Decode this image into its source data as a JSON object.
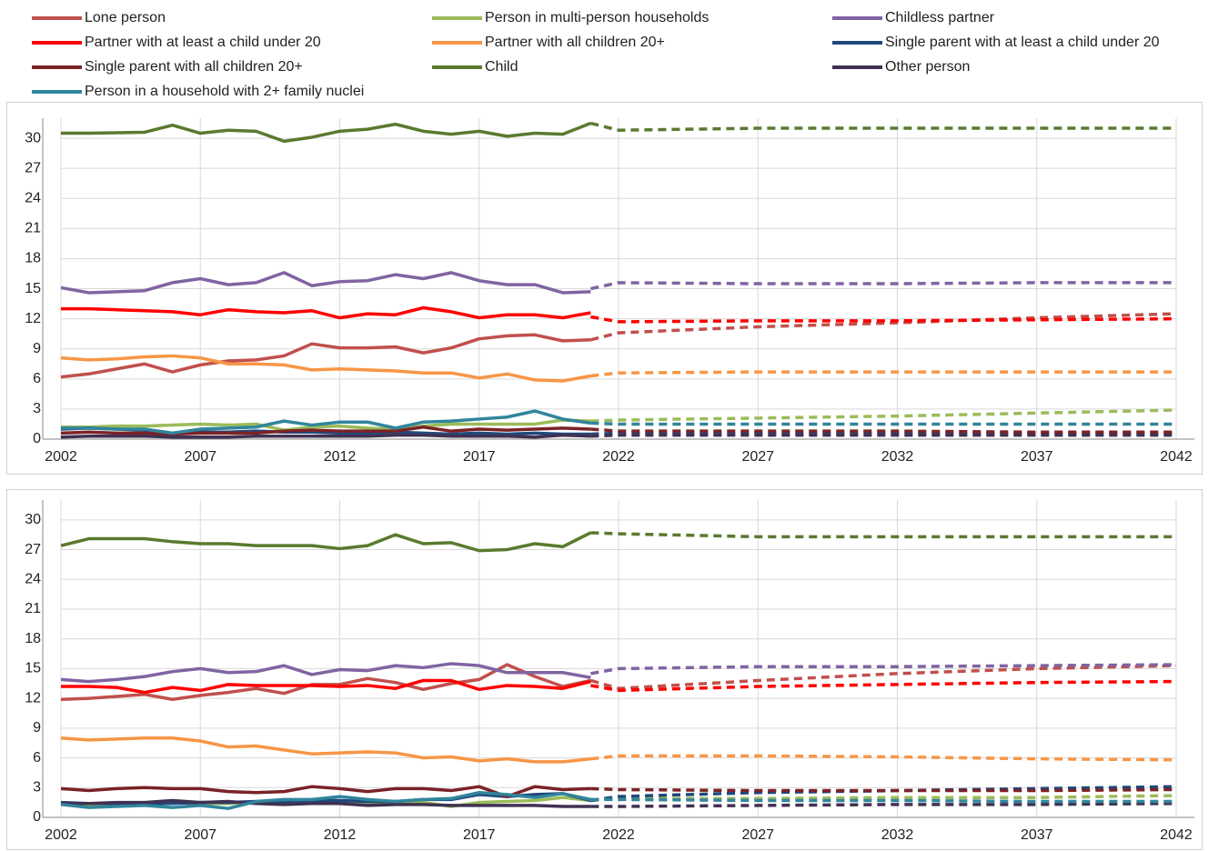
{
  "chart_data": [
    {
      "type": "line",
      "x": [
        2002,
        2003,
        2004,
        2005,
        2006,
        2007,
        2008,
        2009,
        2010,
        2011,
        2012,
        2013,
        2014,
        2015,
        2016,
        2017,
        2018,
        2019,
        2020,
        2021
      ],
      "x_projection": [
        2021,
        2022,
        2027,
        2032,
        2037,
        2042
      ],
      "xlim": [
        2002,
        2042
      ],
      "xticks": [
        2002,
        2007,
        2012,
        2017,
        2022,
        2027,
        2032,
        2037,
        2042
      ],
      "ylim": [
        0,
        32
      ],
      "yticks": [
        0,
        3,
        6,
        9,
        12,
        15,
        18,
        21,
        24,
        27,
        30
      ],
      "grid": true,
      "series": [
        {
          "name": "Lone person",
          "color": "#c0504d",
          "values": [
            6.2,
            6.5,
            7.0,
            7.5,
            6.7,
            7.4,
            7.8,
            7.9,
            8.3,
            9.5,
            9.1,
            9.1,
            9.2,
            8.6,
            9.1,
            10.0,
            10.3,
            10.4,
            9.8,
            9.9
          ],
          "projection": [
            9.9,
            10.6,
            11.2,
            11.6,
            12.1,
            12.5
          ]
        },
        {
          "name": "Person in multi-person households",
          "color": "#9bbb59",
          "values": [
            1.2,
            1.2,
            1.3,
            1.3,
            1.4,
            1.5,
            1.4,
            1.5,
            0.9,
            1.2,
            1.3,
            1.1,
            1.0,
            1.3,
            1.5,
            1.5,
            1.5,
            1.5,
            1.9,
            1.8
          ],
          "projection": [
            1.8,
            1.9,
            2.1,
            2.3,
            2.6,
            2.9
          ]
        },
        {
          "name": "Childless partner",
          "color": "#8064a2",
          "values": [
            15.1,
            14.6,
            14.7,
            14.8,
            15.6,
            16.0,
            15.4,
            15.6,
            16.6,
            15.3,
            15.7,
            15.8,
            16.4,
            16.0,
            16.6,
            15.8,
            15.4,
            15.4,
            14.6,
            14.7
          ],
          "projection": [
            15.0,
            15.6,
            15.5,
            15.5,
            15.6,
            15.6
          ]
        },
        {
          "name": "Partner with at least a child under 20",
          "color": "#ff0000",
          "values": [
            13.0,
            13.0,
            12.9,
            12.8,
            12.7,
            12.4,
            12.9,
            12.7,
            12.6,
            12.8,
            12.1,
            12.5,
            12.4,
            13.1,
            12.7,
            12.1,
            12.4,
            12.4,
            12.1,
            12.6
          ],
          "projection": [
            12.2,
            11.7,
            11.8,
            11.8,
            11.9,
            12.0
          ]
        },
        {
          "name": "Partner with all children 20+",
          "color": "#f79646",
          "values": [
            8.1,
            7.9,
            8.0,
            8.2,
            8.3,
            8.1,
            7.5,
            7.5,
            7.4,
            6.9,
            7.0,
            6.9,
            6.8,
            6.6,
            6.6,
            6.1,
            6.5,
            5.9,
            5.8,
            6.3
          ],
          "projection": [
            6.3,
            6.6,
            6.7,
            6.7,
            6.7,
            6.7
          ]
        },
        {
          "name": "Single parent with at least a child under 20",
          "color": "#1f497d",
          "values": [
            1.0,
            1.1,
            1.0,
            0.9,
            0.5,
            0.7,
            0.7,
            0.8,
            0.7,
            0.7,
            0.6,
            0.6,
            0.7,
            0.6,
            0.5,
            0.6,
            0.5,
            0.6,
            0.5,
            0.5
          ],
          "projection": [
            0.5,
            0.6,
            0.6,
            0.6,
            0.6,
            0.6
          ]
        },
        {
          "name": "Single parent with all children 20+",
          "color": "#7b2226",
          "values": [
            0.6,
            0.7,
            0.6,
            0.6,
            0.5,
            0.6,
            0.6,
            0.6,
            0.8,
            0.9,
            0.8,
            0.8,
            0.8,
            1.2,
            0.8,
            1.0,
            0.9,
            1.0,
            1.1,
            1.0
          ],
          "projection": [
            1.0,
            0.8,
            0.8,
            0.8,
            0.7,
            0.7
          ]
        },
        {
          "name": "Child",
          "color": "#5a7a2e",
          "values": [
            30.5,
            30.5,
            30.55,
            30.6,
            31.3,
            30.5,
            30.8,
            30.7,
            29.7,
            30.1,
            30.7,
            30.9,
            31.4,
            30.7,
            30.4,
            30.7,
            30.2,
            30.5,
            30.4,
            31.5
          ],
          "projection": [
            31.5,
            30.8,
            31.0,
            31.0,
            31.0,
            31.0
          ]
        },
        {
          "name": "Other person",
          "color": "#403152",
          "values": [
            0.2,
            0.3,
            0.3,
            0.3,
            0.2,
            0.2,
            0.2,
            0.3,
            0.3,
            0.3,
            0.3,
            0.3,
            0.4,
            0.4,
            0.3,
            0.3,
            0.3,
            0.2,
            0.4,
            0.3
          ],
          "projection": [
            0.3,
            0.4,
            0.4,
            0.4,
            0.4,
            0.4
          ]
        },
        {
          "name": "Person in a household with 2+ family nuclei",
          "color": "#31859c",
          "values": [
            1.1,
            1.1,
            1.0,
            1.0,
            0.6,
            1.0,
            1.1,
            1.2,
            1.8,
            1.4,
            1.7,
            1.7,
            1.1,
            1.7,
            1.8,
            2.0,
            2.2,
            2.8,
            2.0,
            1.6
          ],
          "projection": [
            1.6,
            1.5,
            1.5,
            1.5,
            1.5,
            1.5
          ]
        }
      ]
    },
    {
      "type": "line",
      "x": [
        2002,
        2003,
        2004,
        2005,
        2006,
        2007,
        2008,
        2009,
        2010,
        2011,
        2012,
        2013,
        2014,
        2015,
        2016,
        2017,
        2018,
        2019,
        2020,
        2021
      ],
      "x_projection": [
        2021,
        2022,
        2027,
        2032,
        2037,
        2042
      ],
      "xlim": [
        2002,
        2042
      ],
      "xticks": [
        2002,
        2007,
        2012,
        2017,
        2022,
        2027,
        2032,
        2037,
        2042
      ],
      "ylim": [
        0,
        32
      ],
      "yticks": [
        0,
        3,
        6,
        9,
        12,
        15,
        18,
        21,
        24,
        27,
        30
      ],
      "grid": true,
      "series": [
        {
          "color": "#c0504d",
          "values": [
            11.9,
            12.0,
            12.2,
            12.4,
            11.9,
            12.3,
            12.6,
            13.0,
            12.5,
            13.4,
            13.4,
            14.0,
            13.6,
            12.9,
            13.5,
            13.9,
            15.4,
            14.2,
            13.2,
            13.8
          ],
          "projection": [
            13.8,
            13.0,
            13.8,
            14.5,
            15.0,
            15.3
          ]
        },
        {
          "color": "#9bbb59",
          "values": [
            1.3,
            1.3,
            1.4,
            1.4,
            1.5,
            1.4,
            1.4,
            1.5,
            1.7,
            1.7,
            1.7,
            1.5,
            1.4,
            1.5,
            1.1,
            1.5,
            1.6,
            1.7,
            2.0,
            1.7
          ],
          "projection": [
            1.7,
            1.9,
            1.9,
            2.0,
            2.0,
            2.2
          ]
        },
        {
          "color": "#8064a2",
          "values": [
            13.9,
            13.7,
            13.9,
            14.2,
            14.7,
            15.0,
            14.6,
            14.7,
            15.3,
            14.4,
            14.9,
            14.8,
            15.3,
            15.1,
            15.5,
            15.3,
            14.6,
            14.6,
            14.6,
            14.1
          ],
          "projection": [
            14.5,
            15.0,
            15.2,
            15.2,
            15.3,
            15.4
          ]
        },
        {
          "color": "#ff0000",
          "values": [
            13.2,
            13.2,
            13.1,
            12.6,
            13.1,
            12.8,
            13.4,
            13.3,
            13.3,
            13.3,
            13.2,
            13.3,
            13.0,
            13.8,
            13.8,
            12.9,
            13.3,
            13.2,
            13.0,
            13.7
          ],
          "projection": [
            13.3,
            12.8,
            13.2,
            13.4,
            13.6,
            13.7
          ]
        },
        {
          "color": "#f79646",
          "values": [
            8.0,
            7.8,
            7.9,
            8.0,
            8.0,
            7.7,
            7.1,
            7.2,
            6.8,
            6.4,
            6.5,
            6.6,
            6.5,
            6.0,
            6.1,
            5.7,
            5.9,
            5.6,
            5.6,
            5.9
          ],
          "projection": [
            5.9,
            6.2,
            6.2,
            6.1,
            5.9,
            5.8
          ]
        },
        {
          "color": "#1f497d",
          "values": [
            1.5,
            1.4,
            1.4,
            1.4,
            1.4,
            1.5,
            1.5,
            1.6,
            1.6,
            1.7,
            1.7,
            1.6,
            1.6,
            1.8,
            1.8,
            2.3,
            2.1,
            2.3,
            2.4,
            1.7
          ],
          "projection": [
            1.7,
            2.1,
            2.5,
            2.7,
            2.9,
            3.1
          ]
        },
        {
          "color": "#7b2226",
          "values": [
            2.9,
            2.7,
            2.9,
            3.0,
            2.9,
            2.9,
            2.6,
            2.5,
            2.6,
            3.1,
            2.9,
            2.6,
            2.9,
            2.9,
            2.7,
            3.1,
            2.1,
            3.1,
            2.8,
            2.9
          ],
          "projection": [
            2.9,
            2.8,
            2.7,
            2.7,
            2.7,
            2.8
          ]
        },
        {
          "color": "#5a7a2e",
          "values": [
            27.4,
            28.1,
            28.1,
            28.1,
            27.8,
            27.6,
            27.6,
            27.4,
            27.4,
            27.4,
            27.1,
            27.4,
            28.5,
            27.6,
            27.7,
            26.9,
            27.0,
            27.6,
            27.3,
            28.7
          ],
          "projection": [
            28.7,
            28.6,
            28.3,
            28.3,
            28.3,
            28.3
          ]
        },
        {
          "color": "#403152",
          "values": [
            1.4,
            1.4,
            1.5,
            1.5,
            1.7,
            1.5,
            1.6,
            1.4,
            1.3,
            1.4,
            1.4,
            1.2,
            1.3,
            1.3,
            1.2,
            1.2,
            1.2,
            1.2,
            1.1,
            1.1
          ],
          "projection": [
            1.1,
            1.1,
            1.2,
            1.3,
            1.3,
            1.4
          ]
        },
        {
          "color": "#31859c",
          "values": [
            1.3,
            1.0,
            1.1,
            1.2,
            1.0,
            1.2,
            0.9,
            1.6,
            1.8,
            1.8,
            2.1,
            1.8,
            1.6,
            1.8,
            1.9,
            2.5,
            2.3,
            2.0,
            2.4,
            1.8
          ],
          "projection": [
            1.8,
            1.8,
            1.7,
            1.7,
            1.6,
            1.6
          ]
        }
      ]
    }
  ]
}
